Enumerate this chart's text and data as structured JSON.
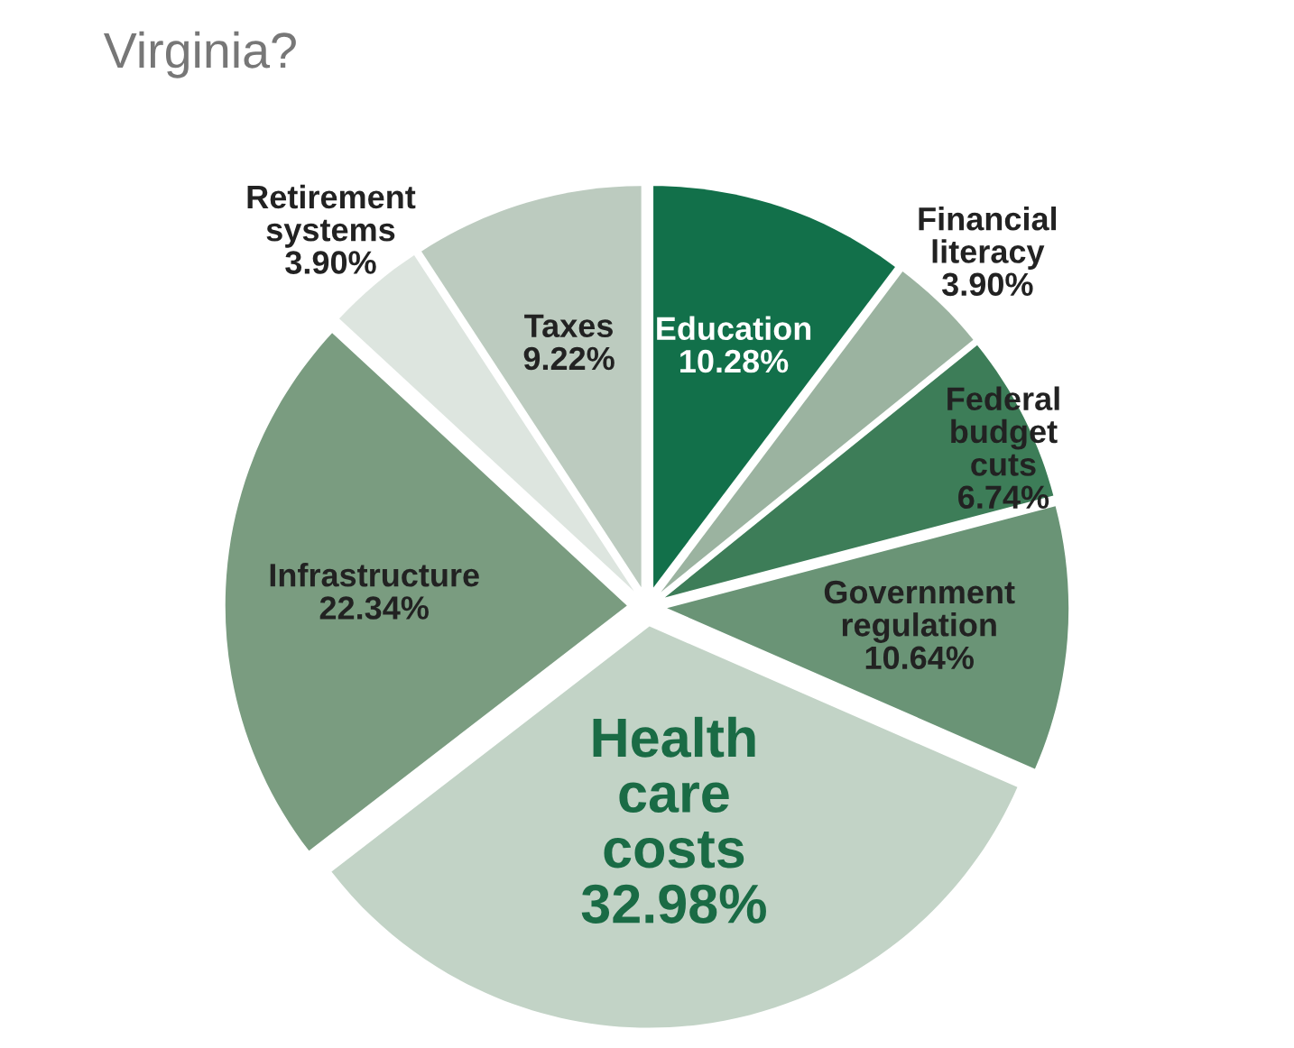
{
  "chart_data": {
    "type": "pie",
    "title": "Virginia?",
    "categories": [
      "Education",
      "Financial literacy",
      "Federal budget cuts",
      "Government regulation",
      "Health care costs",
      "Infrastructure",
      "Retirement systems",
      "Taxes"
    ],
    "values": [
      10.28,
      3.9,
      6.74,
      10.64,
      32.98,
      22.34,
      3.9,
      9.22
    ],
    "value_labels": [
      "10.28%",
      "3.90%",
      "6.74%",
      "10.64%",
      "32.98%",
      "22.34%",
      "3.90%",
      "9.22%"
    ],
    "colors": [
      "#12704a",
      "#9bb3a0",
      "#3d7d58",
      "#6a9476",
      "#c2d3c6",
      "#7a9c80",
      "#dde5df",
      "#bccbbf"
    ]
  }
}
